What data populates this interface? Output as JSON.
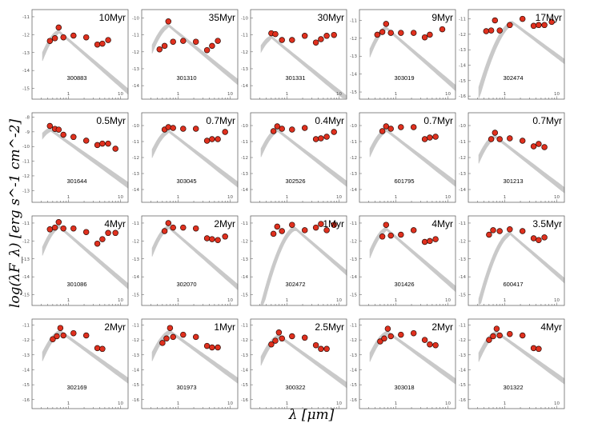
{
  "chart_data": {
    "type": "scatter",
    "xlabel": "λ [μm]",
    "ylabel": "log(λF_λ) [erg s^-1 cm^-2]",
    "xscale": "log",
    "xticks": [
      "1",
      "10"
    ],
    "colors": {
      "points": "#e0301e",
      "point_edge": "#2b0a05",
      "model": "#c4c4c4",
      "frame": "#555555"
    },
    "panels": [
      {
        "id": "300883",
        "age": "10Myr",
        "yticks": [
          -11,
          -12,
          -13,
          -14,
          -15
        ],
        "ylim": [
          -15.6,
          -10.6
        ],
        "points": [
          [
            0.44,
            -12.35
          ],
          [
            0.55,
            -12.2
          ],
          [
            0.65,
            -11.6
          ],
          [
            0.8,
            -12.15
          ],
          [
            1.25,
            -12.05
          ],
          [
            2.2,
            -12.15
          ],
          [
            3.6,
            -12.55
          ],
          [
            4.5,
            -12.5
          ],
          [
            5.8,
            -12.3
          ]
        ]
      },
      {
        "id": "301310",
        "age": "35Myr",
        "yticks": [
          -10,
          -11,
          -12,
          -13,
          -14
        ],
        "ylim": [
          -14.8,
          -9.5
        ],
        "points": [
          [
            0.44,
            -11.85
          ],
          [
            0.55,
            -11.65
          ],
          [
            0.65,
            -10.2
          ],
          [
            0.8,
            -11.4
          ],
          [
            1.25,
            -11.35
          ],
          [
            2.2,
            -11.4
          ],
          [
            3.6,
            -11.9
          ],
          [
            4.5,
            -11.65
          ],
          [
            5.8,
            -11.35
          ]
        ]
      },
      {
        "id": "301331",
        "age": "30Myr",
        "yticks": [
          -10,
          -11,
          -12,
          -13,
          -14
        ],
        "ylim": [
          -14.8,
          -9.5
        ],
        "points": [
          [
            0.5,
            -10.9
          ],
          [
            0.6,
            -10.95
          ],
          [
            0.8,
            -11.3
          ],
          [
            1.25,
            -11.3
          ],
          [
            2.2,
            -11.05
          ],
          [
            3.6,
            -11.45
          ],
          [
            4.5,
            -11.25
          ],
          [
            5.8,
            -11.05
          ],
          [
            8,
            -11.0
          ]
        ]
      },
      {
        "id": "303019",
        "age": "9Myr",
        "yticks": [
          -11,
          -12,
          -13,
          -14,
          -15
        ],
        "ylim": [
          -15.4,
          -10.4
        ],
        "points": [
          [
            0.44,
            -11.8
          ],
          [
            0.55,
            -11.65
          ],
          [
            0.65,
            -11.2
          ],
          [
            0.8,
            -11.7
          ],
          [
            1.25,
            -11.7
          ],
          [
            2.2,
            -11.7
          ],
          [
            3.6,
            -11.95
          ],
          [
            4.5,
            -11.8
          ],
          [
            7.8,
            -11.5
          ]
        ]
      },
      {
        "id": "302474",
        "age": "17Myr",
        "yticks": [
          -11,
          -12,
          -13,
          -14,
          -15,
          -16
        ],
        "ylim": [
          -16.2,
          -10.4
        ],
        "points": [
          [
            0.44,
            -11.8
          ],
          [
            0.55,
            -11.75
          ],
          [
            0.65,
            -11.1
          ],
          [
            0.8,
            -11.75
          ],
          [
            1.25,
            -11.4
          ],
          [
            2.2,
            -11.0
          ],
          [
            3.6,
            -11.45
          ],
          [
            4.5,
            -11.4
          ],
          [
            5.8,
            -11.4
          ],
          [
            8,
            -11.2
          ]
        ]
      },
      {
        "id": "301644",
        "age": "0.5Myr",
        "yticks": [
          -8,
          -9,
          -10,
          -11,
          -12,
          -13
        ],
        "ylim": [
          -13.8,
          -7.7
        ],
        "points": [
          [
            0.44,
            -8.6
          ],
          [
            0.55,
            -8.8
          ],
          [
            0.65,
            -8.85
          ],
          [
            0.8,
            -9.2
          ],
          [
            1.25,
            -9.35
          ],
          [
            2.2,
            -9.6
          ],
          [
            3.6,
            -9.9
          ],
          [
            4.5,
            -9.8
          ],
          [
            5.8,
            -9.8
          ],
          [
            8,
            -10.15
          ]
        ]
      },
      {
        "id": "303045",
        "age": "0.7Myr",
        "yticks": [
          -10,
          -11,
          -12,
          -13,
          -14
        ],
        "ylim": [
          -14.8,
          -9.2
        ],
        "points": [
          [
            0.55,
            -10.25
          ],
          [
            0.65,
            -10.1
          ],
          [
            0.8,
            -10.15
          ],
          [
            1.25,
            -10.2
          ],
          [
            2.2,
            -10.2
          ],
          [
            3.6,
            -10.95
          ],
          [
            4.5,
            -10.85
          ],
          [
            5.8,
            -10.85
          ],
          [
            8,
            -10.4
          ]
        ]
      },
      {
        "id": "302526",
        "age": "0.4Myr",
        "yticks": [
          -10,
          -11,
          -12,
          -13,
          -14
        ],
        "ylim": [
          -14.8,
          -9.2
        ],
        "points": [
          [
            0.55,
            -10.35
          ],
          [
            0.65,
            -10.05
          ],
          [
            0.8,
            -10.2
          ],
          [
            1.25,
            -10.25
          ],
          [
            2.2,
            -10.15
          ],
          [
            3.6,
            -10.85
          ],
          [
            4.5,
            -10.8
          ],
          [
            5.8,
            -10.7
          ],
          [
            8,
            -10.4
          ]
        ]
      },
      {
        "id": "601795",
        "age": "0.7Myr",
        "yticks": [
          -10,
          -11,
          -12,
          -13,
          -14
        ],
        "ylim": [
          -14.8,
          -9.2
        ],
        "points": [
          [
            0.55,
            -10.35
          ],
          [
            0.65,
            -10.05
          ],
          [
            0.8,
            -10.2
          ],
          [
            1.25,
            -10.1
          ],
          [
            2.2,
            -10.1
          ],
          [
            3.6,
            -10.85
          ],
          [
            4.5,
            -10.75
          ],
          [
            5.8,
            -10.7
          ]
        ]
      },
      {
        "id": "301213",
        "age": "0.7Myr",
        "yticks": [
          -10,
          -11,
          -12,
          -13,
          -14
        ],
        "ylim": [
          -14.8,
          -9.2
        ],
        "points": [
          [
            0.55,
            -10.85
          ],
          [
            0.65,
            -10.45
          ],
          [
            0.8,
            -10.85
          ],
          [
            1.25,
            -10.8
          ],
          [
            2.2,
            -10.95
          ],
          [
            3.6,
            -11.3
          ],
          [
            4.5,
            -11.15
          ],
          [
            5.8,
            -11.35
          ]
        ]
      },
      {
        "id": "301086",
        "age": "4Myr",
        "yticks": [
          -11,
          -12,
          -13,
          -14,
          -15
        ],
        "ylim": [
          -15.6,
          -10.6
        ],
        "points": [
          [
            0.44,
            -11.35
          ],
          [
            0.55,
            -11.25
          ],
          [
            0.65,
            -10.95
          ],
          [
            0.8,
            -11.3
          ],
          [
            1.25,
            -11.3
          ],
          [
            2.2,
            -11.5
          ],
          [
            3.6,
            -12.15
          ],
          [
            4.5,
            -11.9
          ],
          [
            5.8,
            -11.55
          ],
          [
            8,
            -11.55
          ]
        ]
      },
      {
        "id": "302070",
        "age": "2Myr",
        "yticks": [
          -11,
          -12,
          -13,
          -14,
          -15
        ],
        "ylim": [
          -15.6,
          -10.6
        ],
        "points": [
          [
            0.55,
            -11.45
          ],
          [
            0.65,
            -11.0
          ],
          [
            0.8,
            -11.25
          ],
          [
            1.25,
            -11.25
          ],
          [
            2.2,
            -11.3
          ],
          [
            3.6,
            -11.85
          ],
          [
            4.5,
            -11.9
          ],
          [
            5.8,
            -11.95
          ],
          [
            8,
            -11.75
          ]
        ]
      },
      {
        "id": "302472",
        "age": "1Myr",
        "yticks": [
          -11,
          -12,
          -13,
          -14,
          -15
        ],
        "ylim": [
          -15.6,
          -10.6
        ],
        "points": [
          [
            0.55,
            -11.6
          ],
          [
            0.65,
            -11.2
          ],
          [
            0.8,
            -11.45
          ],
          [
            1.25,
            -11.1
          ],
          [
            2.2,
            -11.4
          ],
          [
            3.6,
            -11.25
          ],
          [
            4.5,
            -11.05
          ],
          [
            5.8,
            -11.4
          ],
          [
            8,
            -11.1
          ]
        ]
      },
      {
        "id": "301426",
        "age": "4Myr",
        "yticks": [
          -11,
          -12,
          -13,
          -14,
          -15
        ],
        "ylim": [
          -15.6,
          -10.6
        ],
        "points": [
          [
            0.55,
            -11.75
          ],
          [
            0.65,
            -11.1
          ],
          [
            0.8,
            -11.7
          ],
          [
            1.25,
            -11.65
          ],
          [
            2.2,
            -11.4
          ],
          [
            3.6,
            -12.05
          ],
          [
            4.5,
            -12.0
          ],
          [
            5.8,
            -11.9
          ]
        ]
      },
      {
        "id": "600417",
        "age": "3.5Myr",
        "yticks": [
          -11,
          -12,
          -13,
          -14,
          -15
        ],
        "ylim": [
          -15.6,
          -10.6
        ],
        "points": [
          [
            0.5,
            -11.65
          ],
          [
            0.6,
            -11.4
          ],
          [
            0.8,
            -11.45
          ],
          [
            1.25,
            -11.35
          ],
          [
            2.2,
            -11.45
          ],
          [
            3.6,
            -11.85
          ],
          [
            4.5,
            -11.95
          ],
          [
            5.8,
            -11.8
          ]
        ]
      },
      {
        "id": "302169",
        "age": "2Myr",
        "yticks": [
          -11,
          -12,
          -13,
          -14,
          -15,
          -16
        ],
        "ylim": [
          -16.6,
          -10.6
        ],
        "points": [
          [
            0.5,
            -11.95
          ],
          [
            0.6,
            -11.75
          ],
          [
            0.7,
            -11.2
          ],
          [
            0.8,
            -11.7
          ],
          [
            1.25,
            -11.55
          ],
          [
            2.2,
            -11.7
          ],
          [
            3.6,
            -12.55
          ],
          [
            4.5,
            -12.6
          ]
        ]
      },
      {
        "id": "301973",
        "age": "1Myr",
        "yticks": [
          -11,
          -12,
          -13,
          -14,
          -15,
          -16
        ],
        "ylim": [
          -16.6,
          -10.6
        ],
        "points": [
          [
            0.5,
            -12.2
          ],
          [
            0.6,
            -11.9
          ],
          [
            0.7,
            -11.2
          ],
          [
            0.8,
            -11.8
          ],
          [
            1.25,
            -11.65
          ],
          [
            2.2,
            -11.8
          ],
          [
            3.6,
            -12.4
          ],
          [
            4.5,
            -12.5
          ],
          [
            5.8,
            -12.5
          ]
        ]
      },
      {
        "id": "300322",
        "age": "2.5Myr",
        "yticks": [
          -11,
          -12,
          -13,
          -14,
          -15,
          -16
        ],
        "ylim": [
          -16.6,
          -10.6
        ],
        "points": [
          [
            0.5,
            -12.3
          ],
          [
            0.6,
            -12.05
          ],
          [
            0.7,
            -11.5
          ],
          [
            0.8,
            -11.9
          ],
          [
            1.25,
            -11.75
          ],
          [
            2.2,
            -11.85
          ],
          [
            3.6,
            -12.35
          ],
          [
            4.5,
            -12.6
          ],
          [
            5.8,
            -12.6
          ]
        ]
      },
      {
        "id": "303018",
        "age": "2Myr",
        "yticks": [
          -11,
          -12,
          -13,
          -14,
          -15,
          -16
        ],
        "ylim": [
          -16.6,
          -10.6
        ],
        "points": [
          [
            0.5,
            -12.1
          ],
          [
            0.6,
            -11.9
          ],
          [
            0.7,
            -11.25
          ],
          [
            0.8,
            -11.75
          ],
          [
            1.25,
            -11.65
          ],
          [
            2.2,
            -11.55
          ],
          [
            3.6,
            -12.0
          ],
          [
            4.5,
            -12.3
          ],
          [
            5.8,
            -12.35
          ]
        ]
      },
      {
        "id": "301322",
        "age": "4Myr",
        "yticks": [
          -11,
          -12,
          -13,
          -14,
          -15,
          -16
        ],
        "ylim": [
          -16.6,
          -10.6
        ],
        "points": [
          [
            0.5,
            -12.0
          ],
          [
            0.6,
            -11.75
          ],
          [
            0.7,
            -11.25
          ],
          [
            0.8,
            -11.7
          ],
          [
            1.25,
            -11.6
          ],
          [
            2.2,
            -11.7
          ],
          [
            3.6,
            -12.55
          ],
          [
            4.5,
            -12.6
          ]
        ]
      }
    ]
  }
}
